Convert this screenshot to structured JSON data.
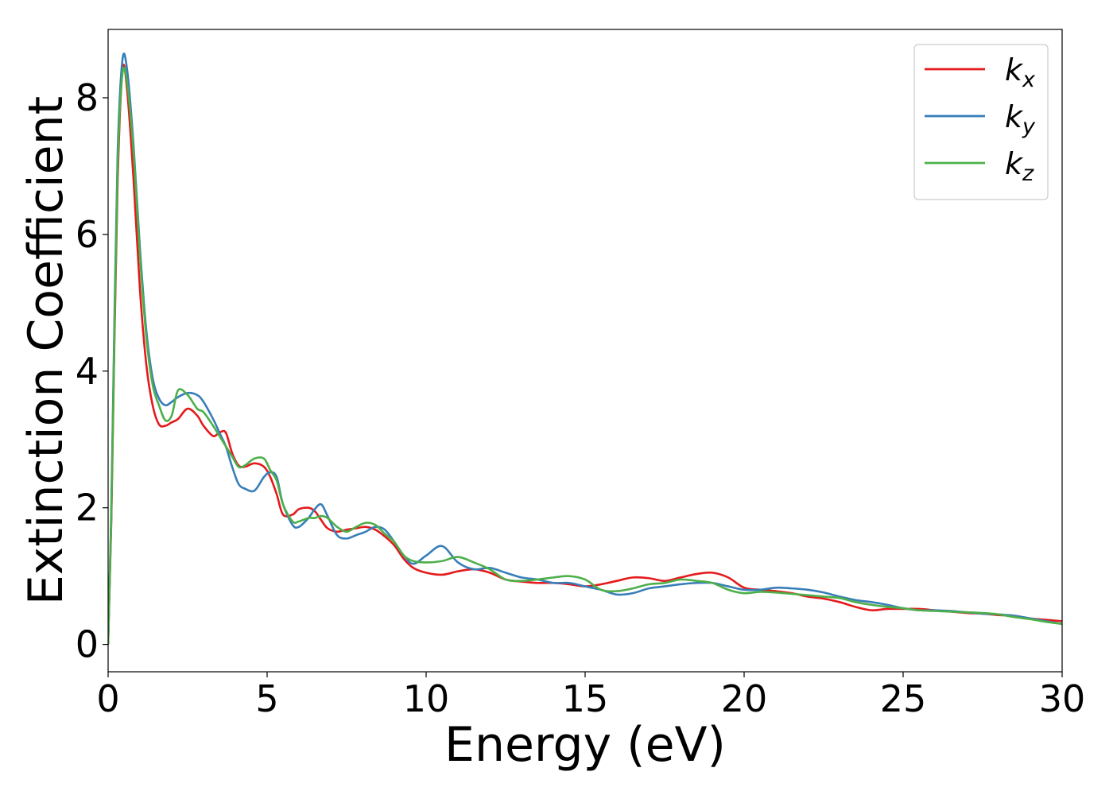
{
  "chart_data": {
    "type": "line",
    "title": "",
    "xlabel": "Energy (eV)",
    "ylabel": "Extinction Coefficient",
    "xlim": [
      0,
      30
    ],
    "ylim": [
      -0.4,
      9.0
    ],
    "xticks": [
      0,
      5,
      10,
      15,
      20,
      25,
      30
    ],
    "yticks": [
      0,
      2,
      4,
      6,
      8
    ],
    "grid": false,
    "legend_position": "top-right",
    "series": [
      {
        "name": "k_x",
        "label_base": "k",
        "label_sub": "x",
        "color": "#e41a1c",
        "x": [
          0.0,
          0.1,
          0.2,
          0.3,
          0.45,
          0.6,
          0.8,
          1.0,
          1.2,
          1.4,
          1.6,
          1.8,
          2.0,
          2.2,
          2.5,
          2.8,
          3.0,
          3.3,
          3.5,
          3.7,
          3.9,
          4.1,
          4.3,
          4.6,
          4.9,
          5.1,
          5.3,
          5.5,
          5.8,
          6.0,
          6.3,
          6.5,
          6.7,
          6.9,
          7.2,
          7.5,
          7.8,
          8.1,
          8.4,
          8.7,
          9.0,
          9.3,
          9.6,
          10.0,
          10.5,
          11.0,
          11.5,
          12.0,
          12.5,
          13.0,
          13.5,
          14.0,
          14.5,
          15.0,
          15.5,
          16.0,
          16.5,
          17.0,
          17.5,
          18.0,
          18.5,
          19.0,
          19.5,
          20.0,
          20.5,
          21.0,
          21.5,
          22.0,
          22.5,
          23.0,
          23.5,
          24.0,
          24.5,
          25.0,
          25.5,
          26.0,
          26.5,
          27.0,
          27.5,
          28.0,
          28.5,
          29.0,
          29.5,
          30.0
        ],
        "y": [
          0.0,
          1.8,
          4.5,
          6.8,
          8.4,
          8.1,
          6.8,
          5.2,
          4.1,
          3.5,
          3.22,
          3.2,
          3.25,
          3.3,
          3.45,
          3.35,
          3.2,
          3.05,
          3.1,
          3.1,
          2.8,
          2.62,
          2.6,
          2.65,
          2.6,
          2.45,
          2.2,
          1.9,
          1.9,
          1.98,
          2.0,
          1.95,
          1.82,
          1.7,
          1.65,
          1.68,
          1.7,
          1.72,
          1.68,
          1.58,
          1.45,
          1.25,
          1.12,
          1.05,
          1.02,
          1.07,
          1.1,
          1.05,
          0.95,
          0.92,
          0.9,
          0.9,
          0.88,
          0.85,
          0.88,
          0.93,
          0.98,
          0.97,
          0.93,
          0.98,
          1.03,
          1.05,
          0.98,
          0.83,
          0.8,
          0.78,
          0.75,
          0.7,
          0.67,
          0.62,
          0.55,
          0.5,
          0.52,
          0.52,
          0.52,
          0.5,
          0.48,
          0.46,
          0.45,
          0.43,
          0.42,
          0.38,
          0.36,
          0.34
        ]
      },
      {
        "name": "k_y",
        "label_base": "k",
        "label_sub": "y",
        "color": "#377eb8",
        "x": [
          0.0,
          0.1,
          0.2,
          0.3,
          0.45,
          0.6,
          0.8,
          1.0,
          1.2,
          1.4,
          1.6,
          1.8,
          2.0,
          2.2,
          2.5,
          2.8,
          3.0,
          3.3,
          3.5,
          3.7,
          3.9,
          4.1,
          4.3,
          4.6,
          4.9,
          5.1,
          5.3,
          5.5,
          5.8,
          6.0,
          6.3,
          6.5,
          6.7,
          6.9,
          7.2,
          7.5,
          7.8,
          8.1,
          8.4,
          8.7,
          9.0,
          9.3,
          9.6,
          10.0,
          10.5,
          11.0,
          11.5,
          12.0,
          12.5,
          13.0,
          13.5,
          14.0,
          14.5,
          15.0,
          15.5,
          16.0,
          16.5,
          17.0,
          17.5,
          18.0,
          18.5,
          19.0,
          19.5,
          20.0,
          20.5,
          21.0,
          21.5,
          22.0,
          22.5,
          23.0,
          23.5,
          24.0,
          24.5,
          25.0,
          25.5,
          26.0,
          26.5,
          27.0,
          27.5,
          28.0,
          28.5,
          29.0,
          29.5,
          30.0
        ],
        "y": [
          0.0,
          2.0,
          4.8,
          7.2,
          8.55,
          8.4,
          7.3,
          5.8,
          4.6,
          3.9,
          3.6,
          3.5,
          3.55,
          3.62,
          3.68,
          3.65,
          3.55,
          3.3,
          3.1,
          2.9,
          2.6,
          2.35,
          2.28,
          2.25,
          2.45,
          2.52,
          2.45,
          2.05,
          1.75,
          1.72,
          1.85,
          1.98,
          2.05,
          1.88,
          1.6,
          1.55,
          1.6,
          1.65,
          1.72,
          1.68,
          1.5,
          1.3,
          1.18,
          1.3,
          1.44,
          1.2,
          1.1,
          1.12,
          1.05,
          0.98,
          0.95,
          0.9,
          0.9,
          0.85,
          0.8,
          0.73,
          0.75,
          0.82,
          0.85,
          0.88,
          0.9,
          0.9,
          0.85,
          0.8,
          0.8,
          0.83,
          0.82,
          0.8,
          0.76,
          0.7,
          0.65,
          0.62,
          0.58,
          0.53,
          0.5,
          0.5,
          0.49,
          0.47,
          0.45,
          0.44,
          0.42,
          0.38,
          0.34,
          0.3
        ]
      },
      {
        "name": "k_z",
        "label_base": "k",
        "label_sub": "z",
        "color": "#4daf4a",
        "x": [
          0.0,
          0.1,
          0.2,
          0.3,
          0.45,
          0.6,
          0.8,
          1.0,
          1.2,
          1.4,
          1.6,
          1.8,
          2.0,
          2.2,
          2.5,
          2.8,
          3.0,
          3.3,
          3.5,
          3.7,
          3.9,
          4.1,
          4.3,
          4.6,
          4.9,
          5.1,
          5.3,
          5.5,
          5.8,
          6.0,
          6.3,
          6.5,
          6.7,
          6.9,
          7.2,
          7.5,
          7.8,
          8.1,
          8.4,
          8.7,
          9.0,
          9.3,
          9.6,
          10.0,
          10.5,
          11.0,
          11.5,
          12.0,
          12.5,
          13.0,
          13.5,
          14.0,
          14.5,
          15.0,
          15.5,
          16.0,
          16.5,
          17.0,
          17.5,
          18.0,
          18.5,
          19.0,
          19.5,
          20.0,
          20.5,
          21.0,
          21.5,
          22.0,
          22.5,
          23.0,
          23.5,
          24.0,
          24.5,
          25.0,
          25.5,
          26.0,
          26.5,
          27.0,
          27.5,
          28.0,
          28.5,
          29.0,
          29.5,
          30.0
        ],
        "y": [
          0.0,
          1.9,
          4.6,
          7.0,
          8.35,
          8.2,
          7.2,
          5.7,
          4.5,
          3.8,
          3.5,
          3.28,
          3.35,
          3.72,
          3.65,
          3.45,
          3.4,
          3.2,
          3.05,
          2.9,
          2.75,
          2.6,
          2.62,
          2.72,
          2.72,
          2.55,
          2.4,
          2.05,
          1.8,
          1.8,
          1.85,
          1.85,
          1.88,
          1.85,
          1.72,
          1.65,
          1.72,
          1.78,
          1.75,
          1.62,
          1.5,
          1.3,
          1.22,
          1.2,
          1.22,
          1.28,
          1.2,
          1.1,
          0.95,
          0.93,
          0.95,
          0.98,
          1.0,
          0.95,
          0.8,
          0.78,
          0.82,
          0.88,
          0.9,
          0.95,
          0.93,
          0.9,
          0.8,
          0.75,
          0.77,
          0.76,
          0.74,
          0.72,
          0.7,
          0.68,
          0.62,
          0.58,
          0.55,
          0.53,
          0.5,
          0.49,
          0.48,
          0.47,
          0.46,
          0.44,
          0.4,
          0.37,
          0.33,
          0.3
        ]
      }
    ]
  }
}
